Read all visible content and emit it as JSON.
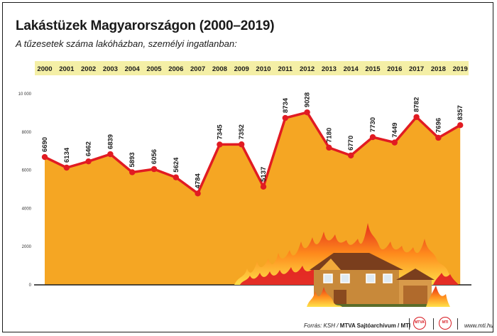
{
  "header": {
    "title": "Lakástüzek Magyarországon (2000–2019)",
    "subtitle": "A tűzesetek száma lakóházban, személyi ingatlanban:"
  },
  "footer": {
    "source_prefix": "Forrás: KSH / ",
    "source_archive": "MTVA Sajtóarchívum / MTI",
    "logo1": "MTVA",
    "logo2": "MTI",
    "url": "www.mti.hu"
  },
  "colors": {
    "area": "#f5a623",
    "line": "#e11b22",
    "year_strip": "#f4efa6"
  },
  "chart_data": {
    "type": "area",
    "x": [
      "2000",
      "2001",
      "2002",
      "2003",
      "2004",
      "2005",
      "2006",
      "2007",
      "2008",
      "2009",
      "2010",
      "2011",
      "2012",
      "2013",
      "2014",
      "2015",
      "2016",
      "2017",
      "2018",
      "2019"
    ],
    "values": [
      6690,
      6134,
      6462,
      6839,
      5893,
      6056,
      5624,
      4784,
      7345,
      7352,
      5137,
      8734,
      9028,
      7180,
      6770,
      7730,
      7449,
      8782,
      7696,
      8357
    ],
    "value_labels": [
      "6690",
      "6134",
      "6462",
      "6839",
      "5893",
      "6056",
      "5624",
      "4784",
      "7345",
      "7352",
      "5137",
      "8734",
      "9028",
      "7180",
      "6770",
      "7730",
      "7449",
      "8782",
      "7696",
      "8357"
    ],
    "yticks": [
      0,
      2000,
      4000,
      6000,
      8000,
      10000
    ],
    "ytick_labels": [
      "0",
      "2000",
      "4000",
      "6000",
      "8000",
      "10 000"
    ],
    "ylim": [
      0,
      10000
    ],
    "grid": false,
    "legend": "none"
  }
}
